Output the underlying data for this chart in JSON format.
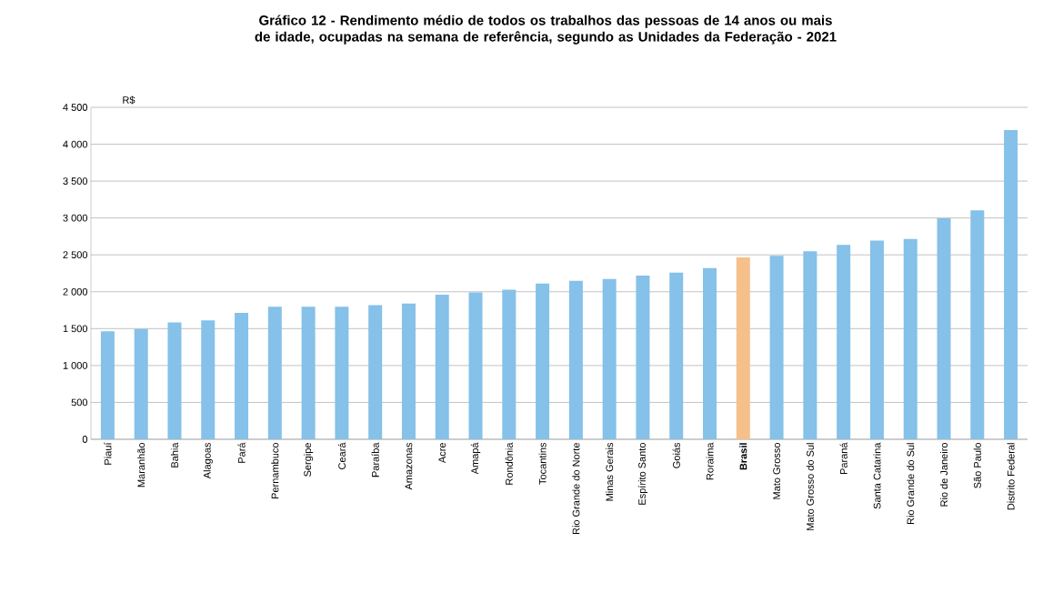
{
  "chart_data": {
    "type": "bar",
    "title": "Gráfico 12 - Rendimento médio de todos os trabalhos das pessoas de 14 anos ou mais de idade, ocupadas na semana de referência, segundo as Unidades da Federação - 2021",
    "ylabel": "R$",
    "categories": [
      "Piauí",
      "Maranhão",
      "Bahia",
      "Alagoas",
      "Pará",
      "Pernambuco",
      "Sergipe",
      "Ceará",
      "Paraíba",
      "Amazonas",
      "Acre",
      "Amapá",
      "Rondônia",
      "Tocantins",
      "Rio Grande do Norte",
      "Minas Gerais",
      "Espírito Santo",
      "Goiás",
      "Roraima",
      "**Brasil**",
      "Mato Grosso",
      "Mato Grosso do Sul",
      "Paraná",
      "Santa Catarina",
      "Rio Grande do Sul",
      "Rio de Janeiro",
      "São Paulo",
      "Distrito Federal"
    ],
    "values": [
      1463,
      1496,
      1583,
      1612,
      1715,
      1798,
      1798,
      1798,
      1818,
      1839,
      1959,
      1992,
      2029,
      2112,
      2149,
      2174,
      2219,
      2260,
      2322,
      2467,
      2488,
      2548,
      2634,
      2694,
      2714,
      2996,
      3105,
      4193
    ],
    "colors": [
      "#85c1e9",
      "#85c1e9",
      "#85c1e9",
      "#85c1e9",
      "#85c1e9",
      "#85c1e9",
      "#85c1e9",
      "#85c1e9",
      "#85c1e9",
      "#85c1e9",
      "#85c1e9",
      "#85c1e9",
      "#85c1e9",
      "#85c1e9",
      "#85c1e9",
      "#85c1e9",
      "#85c1e9",
      "#85c1e9",
      "#85c1e9",
      "#f5c08a",
      "#85c1e9",
      "#85c1e9",
      "#85c1e9",
      "#85c1e9",
      "#85c1e9",
      "#85c1e9",
      "#85c1e9",
      "#85c1e9"
    ],
    "ylim": [
      0,
      4500
    ],
    "yticks": [
      0,
      500,
      {
        "value": 1000,
        "label": "1 000"
      },
      {
        "value": 1500,
        "label": "1 500"
      },
      {
        "value": 2000,
        "label": "2 000"
      },
      {
        "value": 2500,
        "label": "2 500"
      },
      {
        "value": 3000,
        "label": "3 000"
      },
      {
        "value": 3500,
        "label": "3 500"
      },
      {
        "value": 4000,
        "label": "4 000"
      },
      {
        "value": 4500,
        "label": "4 500"
      }
    ],
    "grid": "y"
  }
}
